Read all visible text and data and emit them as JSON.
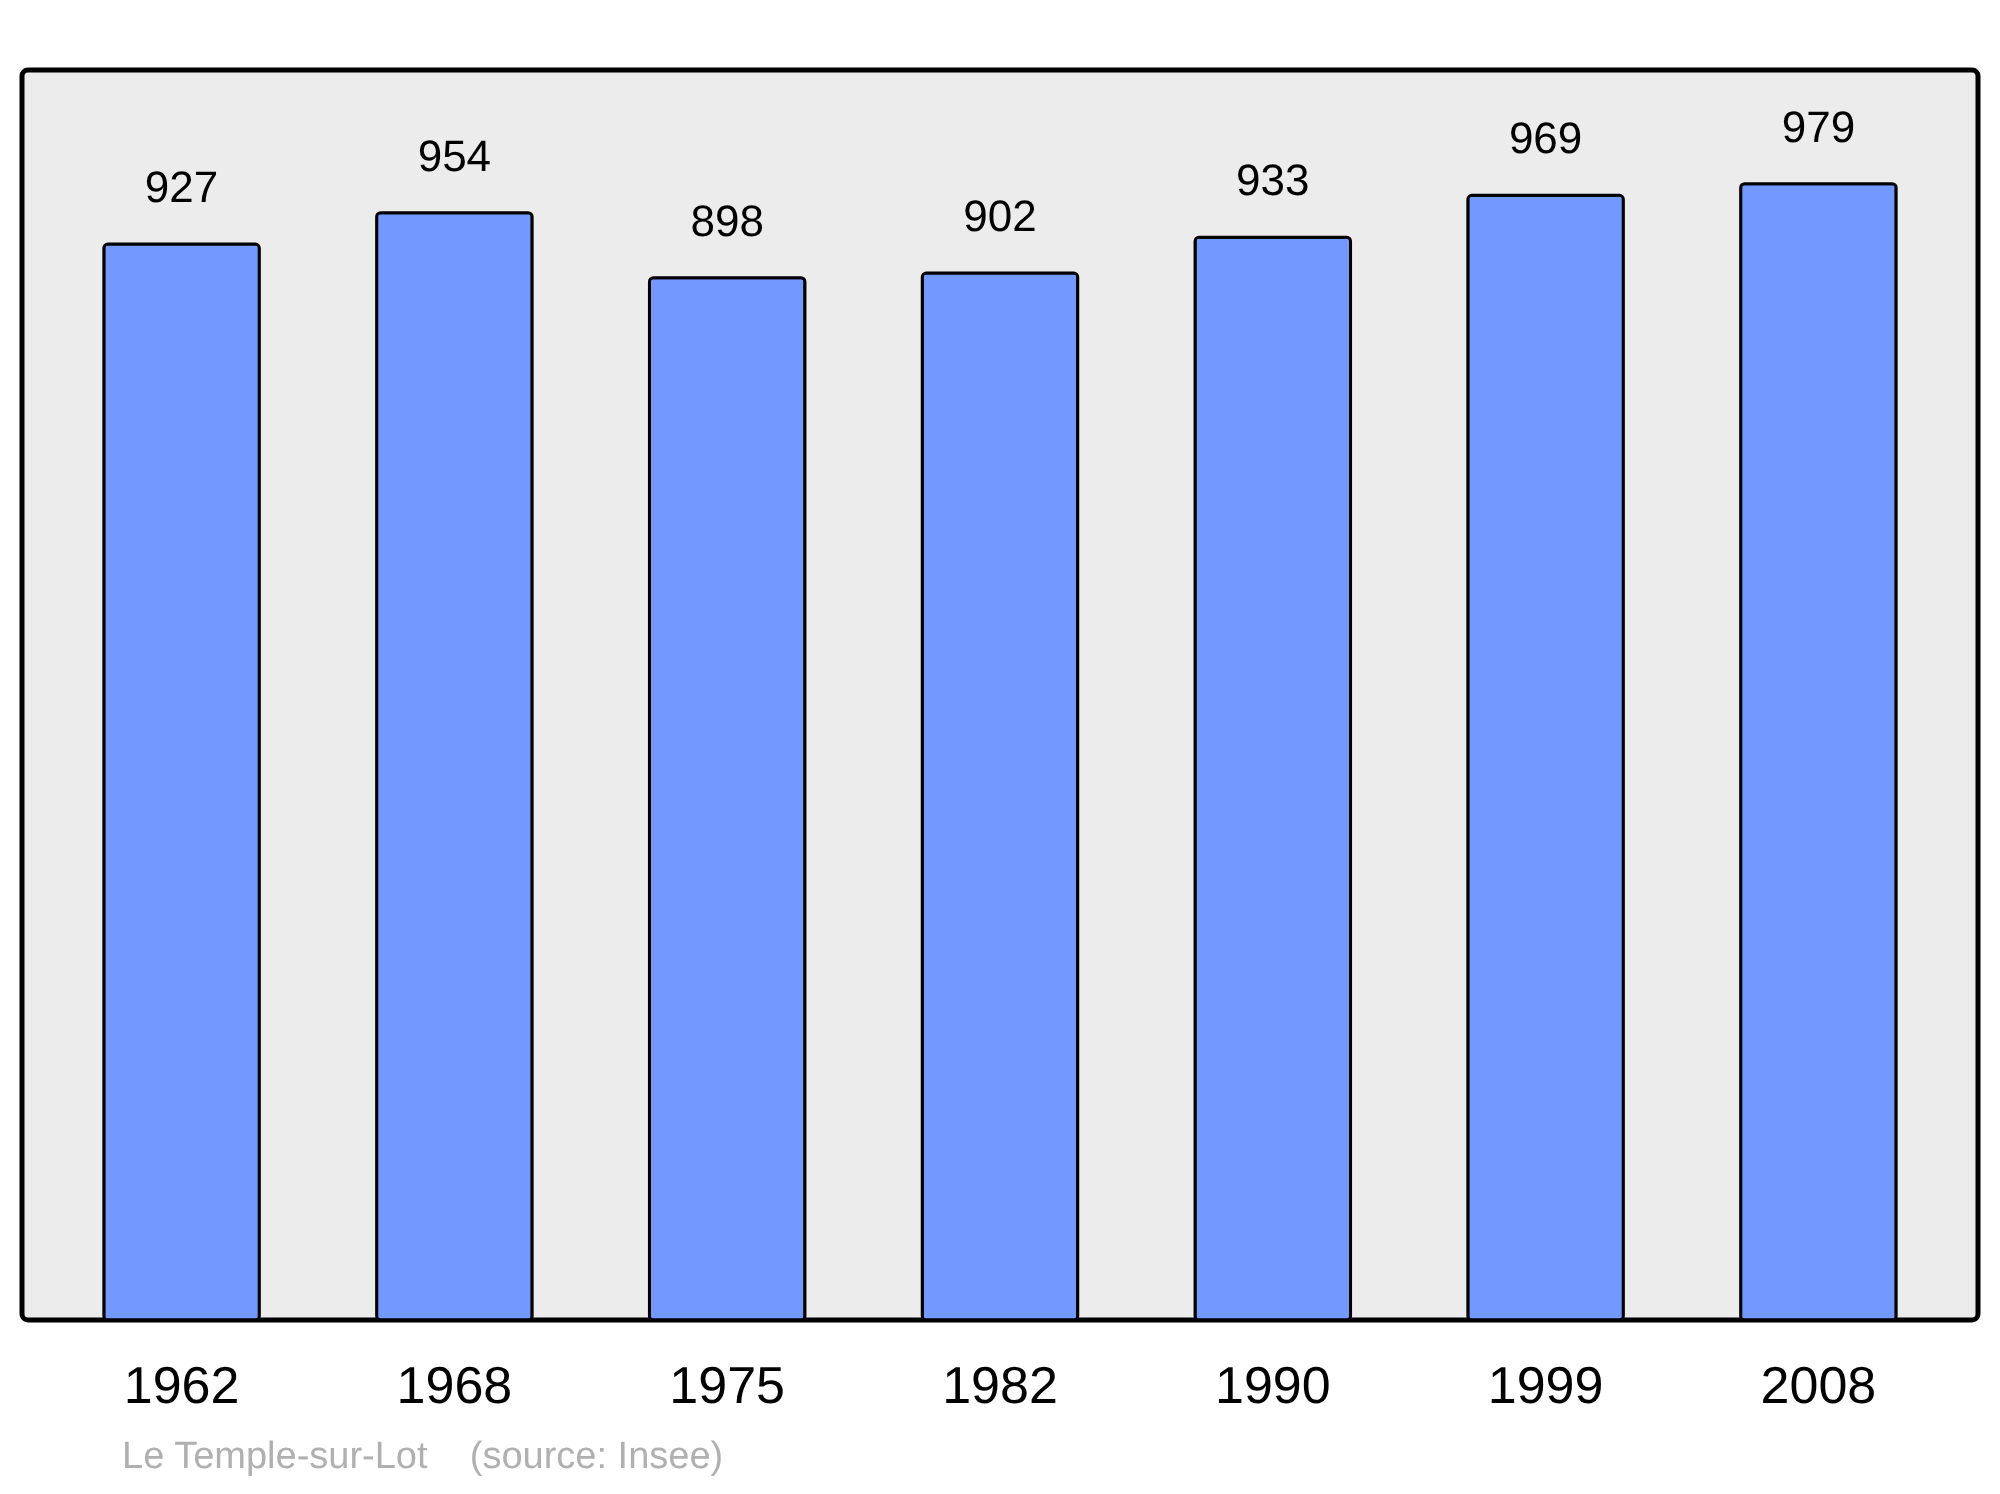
{
  "chart_data": {
    "type": "bar",
    "categories": [
      "1962",
      "1968",
      "1975",
      "1982",
      "1990",
      "1999",
      "2008"
    ],
    "values": [
      927,
      954,
      898,
      902,
      933,
      969,
      979
    ],
    "color": "#7399ff",
    "ylim": [
      0,
      1077
    ],
    "tick_labels": "x",
    "data_labels": true,
    "annotations": [
      "Le Temple-sur-Lot",
      "(source: Insee)"
    ]
  }
}
